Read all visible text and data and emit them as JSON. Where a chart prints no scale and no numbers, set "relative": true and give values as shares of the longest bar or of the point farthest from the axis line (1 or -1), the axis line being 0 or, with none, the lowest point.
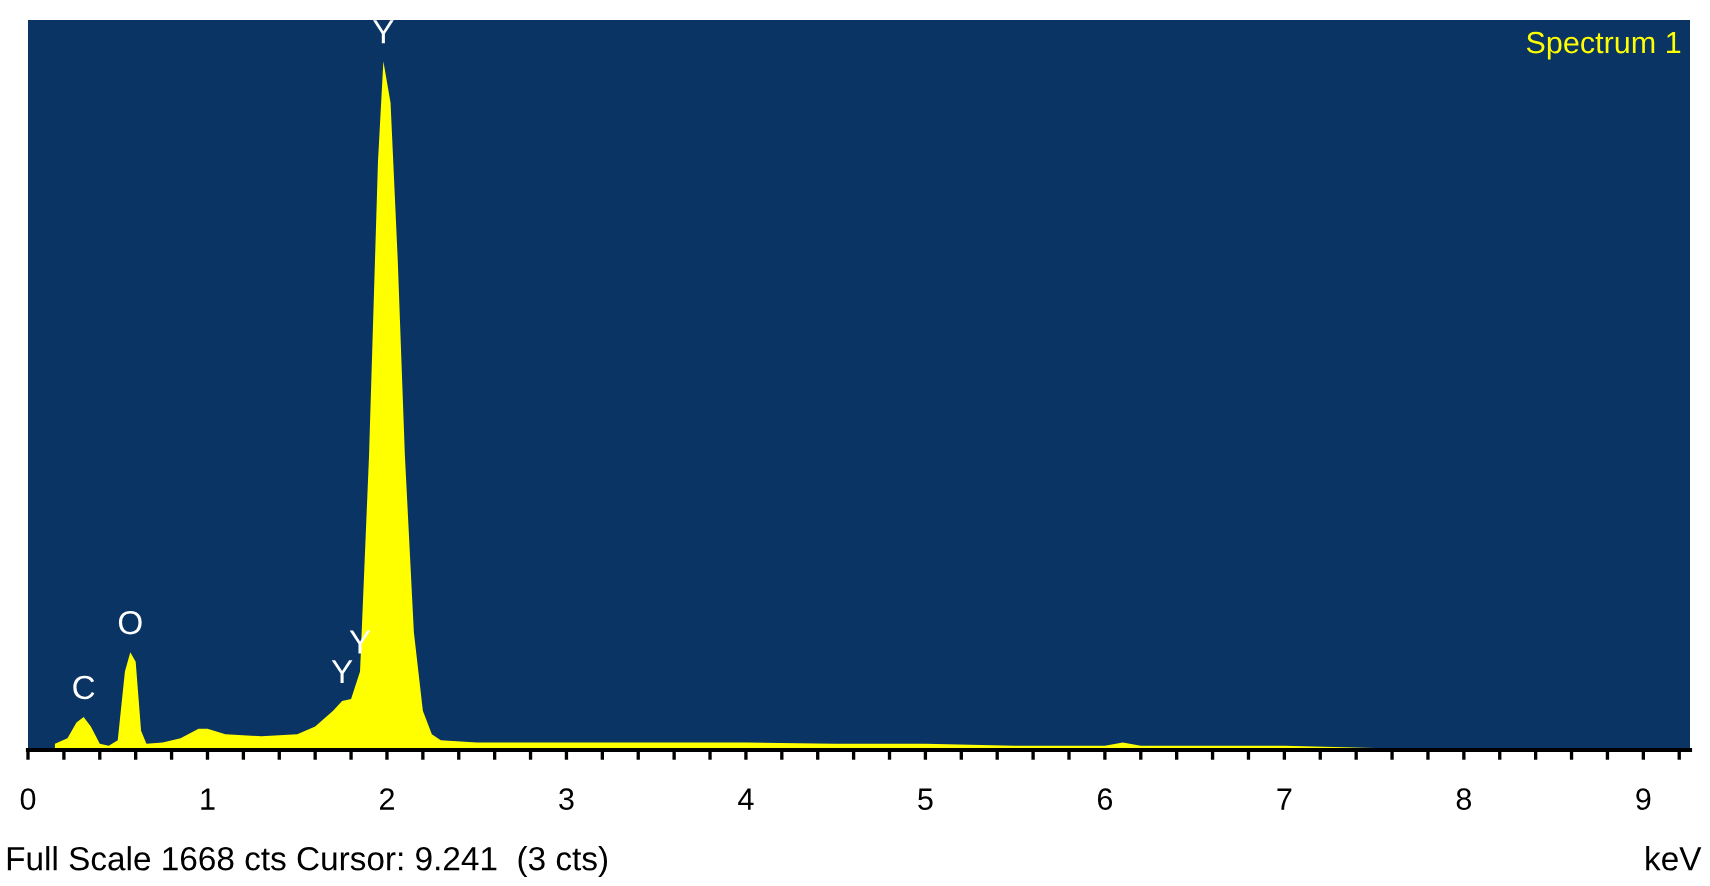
{
  "chart_data": {
    "type": "area",
    "relative": true,
    "xlabel": "keV",
    "x": [
      0.15,
      0.22,
      0.27,
      0.31,
      0.35,
      0.4,
      0.45,
      0.5,
      0.54,
      0.57,
      0.6,
      0.63,
      0.66,
      0.75,
      0.85,
      0.95,
      1.0,
      1.1,
      1.3,
      1.5,
      1.6,
      1.7,
      1.75,
      1.8,
      1.85,
      1.9,
      1.95,
      1.98,
      2.02,
      2.06,
      2.1,
      2.15,
      2.2,
      2.25,
      2.3,
      2.5,
      3.0,
      3.5,
      4.0,
      4.5,
      5.0,
      5.5,
      6.0,
      6.1,
      6.2,
      7.0,
      7.5,
      8.0,
      8.3,
      8.5,
      9.26
    ],
    "series": [
      {
        "name": "Spectrum 1",
        "color": "#ffff00",
        "values": [
          0.009,
          0.017,
          0.04,
          0.048,
          0.034,
          0.009,
          0.006,
          0.014,
          0.114,
          0.142,
          0.128,
          0.028,
          0.009,
          0.011,
          0.017,
          0.031,
          0.031,
          0.023,
          0.02,
          0.023,
          0.034,
          0.057,
          0.071,
          0.074,
          0.114,
          0.427,
          0.855,
          1.0,
          0.94,
          0.712,
          0.427,
          0.171,
          0.057,
          0.023,
          0.014,
          0.011,
          0.011,
          0.011,
          0.011,
          0.009,
          0.009,
          0.006,
          0.006,
          0.011,
          0.006,
          0.006,
          0.003,
          0.003,
          0.001,
          0,
          0
        ]
      }
    ],
    "xlim": [
      0,
      9.26
    ],
    "xticks": [
      0,
      {
        "value": 0.2,
        "label": null
      },
      {
        "value": 0.4,
        "label": null
      },
      {
        "value": 0.6,
        "label": null
      },
      {
        "value": 0.8,
        "label": null
      },
      1,
      {
        "value": 1.2,
        "label": null
      },
      {
        "value": 1.4,
        "label": null
      },
      {
        "value": 1.6,
        "label": null
      },
      {
        "value": 1.8,
        "label": null
      },
      2,
      {
        "value": 2.2,
        "label": null
      },
      {
        "value": 2.4,
        "label": null
      },
      {
        "value": 2.6,
        "label": null
      },
      {
        "value": 2.8,
        "label": null
      },
      3,
      {
        "value": 3.2,
        "label": null
      },
      {
        "value": 3.4,
        "label": null
      },
      {
        "value": 3.6,
        "label": null
      },
      {
        "value": 3.8,
        "label": null
      },
      4,
      {
        "value": 4.2,
        "label": null
      },
      {
        "value": 4.4,
        "label": null
      },
      {
        "value": 4.6,
        "label": null
      },
      {
        "value": 4.8,
        "label": null
      },
      5,
      {
        "value": 5.2,
        "label": null
      },
      {
        "value": 5.4,
        "label": null
      },
      {
        "value": 5.6,
        "label": null
      },
      {
        "value": 5.8,
        "label": null
      },
      6,
      {
        "value": 6.2,
        "label": null
      },
      {
        "value": 6.4,
        "label": null
      },
      {
        "value": 6.6,
        "label": null
      },
      {
        "value": 6.8,
        "label": null
      },
      7,
      {
        "value": 7.2,
        "label": null
      },
      {
        "value": 7.4,
        "label": null
      },
      {
        "value": 7.6,
        "label": null
      },
      {
        "value": 7.8,
        "label": null
      },
      8,
      {
        "value": 8.2,
        "label": null
      },
      {
        "value": 8.4,
        "label": null
      },
      {
        "value": 8.6,
        "label": null
      },
      {
        "value": 8.8,
        "label": null
      },
      9,
      {
        "value": 9.2,
        "label": null
      }
    ],
    "tick_labels": "x",
    "annotations": [
      {
        "text": "C",
        "x": 0.31,
        "y": 0.048
      },
      {
        "text": "O",
        "x": 0.57,
        "y": 0.142
      },
      {
        "text": "Y",
        "x": 1.75,
        "y": 0.071
      },
      {
        "text": "Y",
        "x": 1.85,
        "y": 0.114
      },
      {
        "text": "Y",
        "x": 1.98,
        "y": 1.0
      },
      "Full Scale 1668 cts Cursor: 9.241  (3 cts)"
    ]
  }
}
